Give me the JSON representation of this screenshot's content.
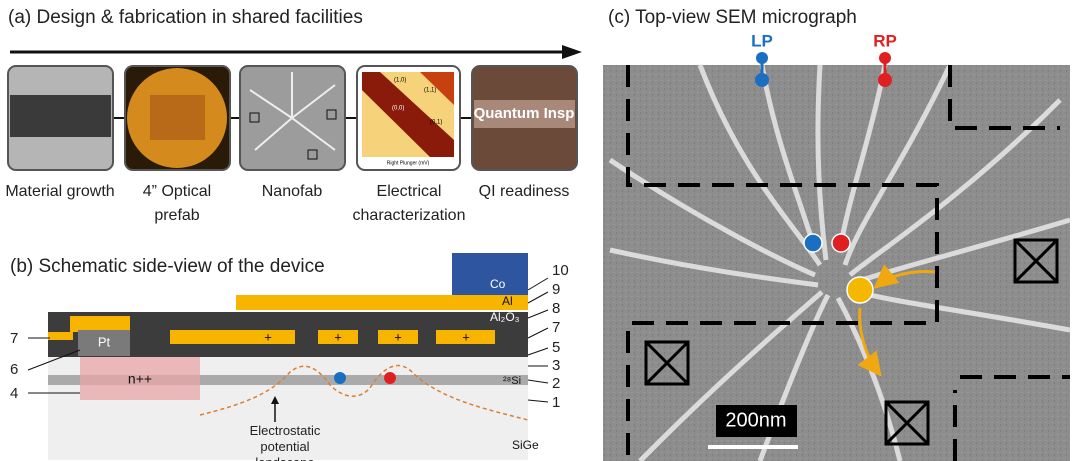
{
  "panel_a": {
    "title": "(a) Design & fabrication in shared facilities",
    "steps": [
      {
        "caption": "Material growth"
      },
      {
        "caption": "4” Optical prefab"
      },
      {
        "caption": "Nanofab"
      },
      {
        "caption": "Electrical characterization"
      },
      {
        "caption": "QI readiness"
      }
    ],
    "plot_labels": [
      "(1,0)",
      "(1,1)",
      "(0,0)",
      "(0,1)",
      "Right Plunger (mV)"
    ],
    "photo_text": "Quantum Insp"
  },
  "panel_b": {
    "title": "(b) Schematic side-view of the device",
    "materials": {
      "co": "Co",
      "al": "Al",
      "oxide": "Al₂O₃",
      "pt": "Pt",
      "doped": "n++",
      "si": "²⁸Si",
      "substrate": "SiGe"
    },
    "gate_signs": [
      "+",
      "+",
      "+",
      "+",
      "+"
    ],
    "annotation": "Electrostatic potential landscape",
    "right_numbers": [
      "10",
      "9",
      "8",
      "7",
      "5",
      "3",
      "2",
      "1"
    ],
    "left_numbers": [
      "7",
      "6",
      "4"
    ]
  },
  "panel_c": {
    "title": "(c) Top-view SEM micrograph",
    "left_plunger": "LP",
    "right_plunger": "RP",
    "scale_bar": "200nm"
  }
}
